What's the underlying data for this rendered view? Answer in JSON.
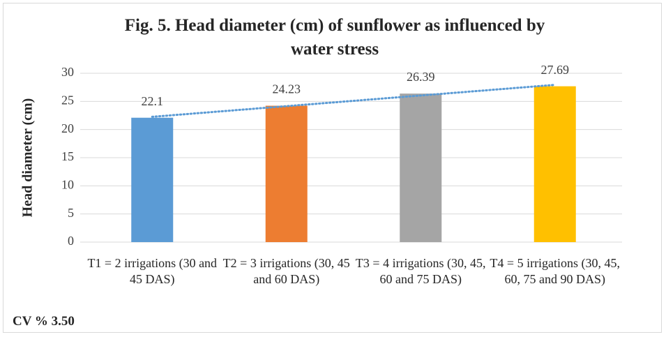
{
  "chart_data": {
    "type": "bar",
    "title": "Fig. 5. Head diameter (cm) of sunflower as influenced by water stress",
    "y_label": "Head diameter (cm)",
    "categories": [
      "T1 = 2 irrigations (30 and 45 DAS)",
      "T2 = 3 irrigations (30, 45 and 60 DAS)",
      "T3 = 4 irrigations (30, 45, 60 and 75 DAS)",
      "T4 = 5 irrigations (30, 45, 60, 75 and 90 DAS)"
    ],
    "values": [
      22.1,
      24.23,
      26.39,
      27.69
    ],
    "colors": [
      "#5b9bd5",
      "#ed7d31",
      "#a5a5a5",
      "#ffc000"
    ],
    "ylim": [
      0,
      30
    ],
    "yticks": [
      0,
      5,
      10,
      15,
      20,
      25,
      30
    ],
    "grid": true,
    "trendline": "linear",
    "trendline_color": "#5b9bd5",
    "footnote": "CV % 3.50"
  }
}
